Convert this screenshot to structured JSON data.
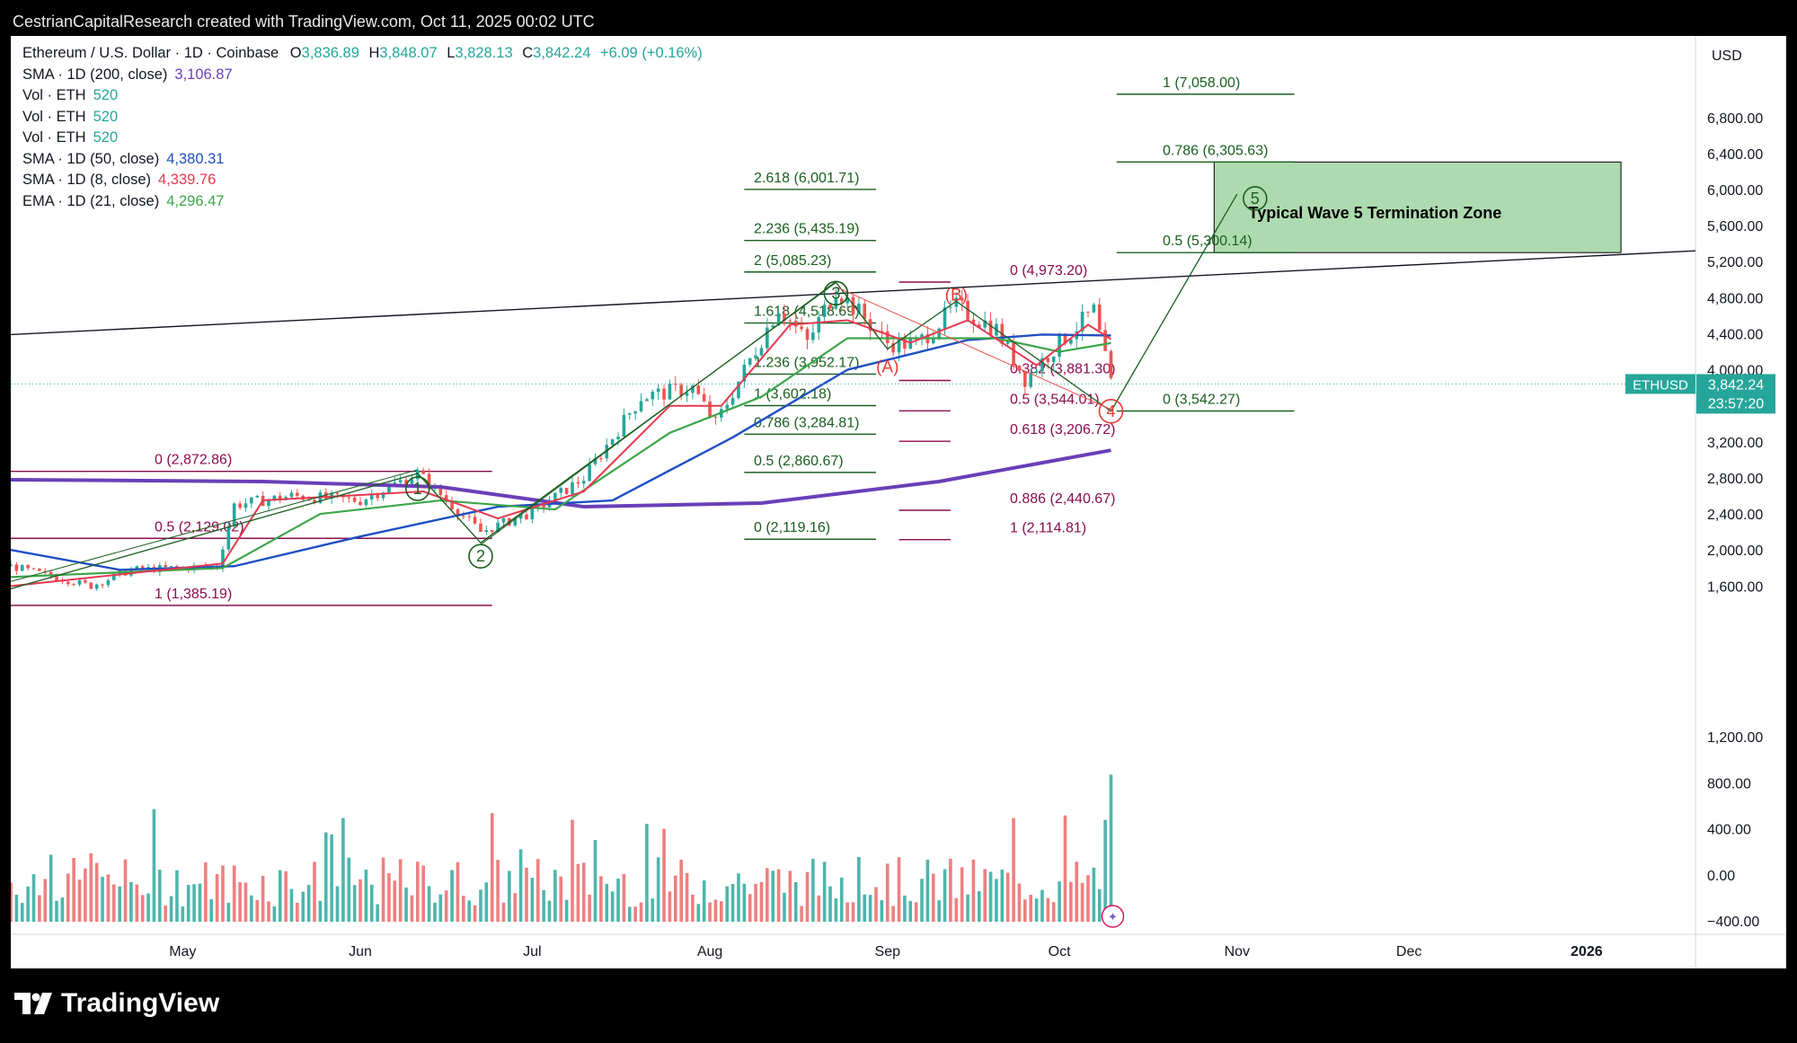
{
  "header": {
    "attribution": "CestrianCapitalResearch created with TradingView.com, Oct 11, 2025 00:02 UTC"
  },
  "legend": {
    "symbol": "Ethereum / U.S. Dollar · 1D · Coinbase",
    "o_label": "O",
    "o_value": "3,836.89",
    "h_label": "H",
    "h_value": "3,848.07",
    "l_label": "L",
    "l_value": "3,828.13",
    "c_label": "C",
    "c_value": "3,842.24",
    "change": "+6.09 (+0.16%)",
    "indicators": [
      {
        "label": "SMA · 1D (200, close)",
        "value": "3,106.87",
        "color": "#6a3fb8"
      },
      {
        "label": "Vol · ETH",
        "value": "520",
        "color": "#26a69a"
      },
      {
        "label": "Vol · ETH",
        "value": "520",
        "color": "#26a69a"
      },
      {
        "label": "Vol · ETH",
        "value": "520",
        "color": "#26a69a"
      },
      {
        "label": "SMA · 1D (50, close)",
        "value": "4,380.31",
        "color": "#1e4fc2"
      },
      {
        "label": "SMA · 1D (8, close)",
        "value": "4,339.76",
        "color": "#e53950"
      },
      {
        "label": "EMA · 1D (21, close)",
        "value": "4,296.47",
        "color": "#3ca54a"
      }
    ]
  },
  "price_axis": {
    "currency": "USD",
    "ticks": [
      "6,800.00",
      "6,400.00",
      "6,000.00",
      "5,600.00",
      "5,200.00",
      "4,800.00",
      "4,400.00",
      "4,000.00",
      "3,600.00",
      "3,200.00",
      "2,800.00",
      "2,400.00",
      "2,000.00",
      "1,600.00"
    ],
    "volume_ticks": [
      "1,200.00",
      "800.00",
      "400.00",
      "0.00",
      "−400.00"
    ],
    "symbol_tag": "ETHUSD",
    "last_price": "3,842.24",
    "countdown": "23:57:20",
    "tag_color": "#26a69a"
  },
  "time_axis": {
    "labels": [
      "May",
      "Jun",
      "Jul",
      "Aug",
      "Sep",
      "Oct",
      "Nov",
      "Dec",
      "2026"
    ]
  },
  "chart_data": {
    "type": "candlestick",
    "symbol": "ETHUSD",
    "timeframe": "1D",
    "exchange": "Coinbase",
    "price_range": [
      -400,
      7000
    ],
    "fibonacci_retracement_left": [
      {
        "label": "0 (2,872.86)",
        "value": 2872.86
      },
      {
        "label": "0.5 (2,129.02)",
        "value": 2129.02
      },
      {
        "label": "1 (1,385.19)",
        "value": 1385.19
      }
    ],
    "fibonacci_extension_wave3": [
      {
        "label": "2.618 (6,001.71)",
        "value": 6001.71
      },
      {
        "label": "2.236 (5,435.19)",
        "value": 5435.19
      },
      {
        "label": "2 (5,085.23)",
        "value": 5085.23
      },
      {
        "label": "1.618 (4,518.69)",
        "value": 4518.69
      },
      {
        "label": "1.236 (3,952.17)",
        "value": 3952.17
      },
      {
        "label": "1 (3,602.18)",
        "value": 3602.18
      },
      {
        "label": "0.786 (3,284.81)",
        "value": 3284.81
      },
      {
        "label": "0.5 (2,860.67)",
        "value": 2860.67
      },
      {
        "label": "0 (2,119.16)",
        "value": 2119.16
      }
    ],
    "fibonacci_retracement_wave4": [
      {
        "label": "0 (4,973.20)",
        "value": 4973.2
      },
      {
        "label": "0.382 (3,881.30)",
        "value": 3881.3
      },
      {
        "label": "0.5 (3,544.01)",
        "value": 3544.01
      },
      {
        "label": "0.618 (3,206.72)",
        "value": 3206.72
      },
      {
        "label": "0.886 (2,440.67)",
        "value": 2440.67
      },
      {
        "label": "1 (2,114.81)",
        "value": 2114.81
      }
    ],
    "fibonacci_extension_wave5": [
      {
        "label": "1 (7,058.00)",
        "value": 7058.0
      },
      {
        "label": "0.786 (6,305.63)",
        "value": 6305.63
      },
      {
        "label": "0.5 (5,300.14)",
        "value": 5300.14
      },
      {
        "label": "0 (3,542.27)",
        "value": 3542.27
      }
    ],
    "wave_labels": [
      {
        "label": "1",
        "date": "2025-06-11",
        "price": 2880
      },
      {
        "label": "2",
        "date": "2025-06-22",
        "price": 2110
      },
      {
        "label": "3",
        "date": "2025-08-23",
        "price": 4950
      },
      {
        "label": "4",
        "date": "2025-10-10",
        "price": 3440
      },
      {
        "label": "5",
        "date": "2025-11-01",
        "price": 6100
      },
      {
        "label": "(A)",
        "date": "2025-09-01",
        "price": 4050
      },
      {
        "label": "(B)",
        "date": "2025-09-13",
        "price": 4770
      }
    ],
    "termination_zone": {
      "label": "Typical Wave 5 Termination Zone",
      "price_low": 5300.14,
      "price_high": 6305.63,
      "color": "#a5d6a7"
    },
    "trendline": {
      "from": {
        "date": "2025-04-01",
        "price": 4390
      },
      "to": {
        "date": "2026-01-20",
        "price": 5320
      }
    },
    "price_path": [
      {
        "date": "2025-04-01",
        "price": 1820
      },
      {
        "date": "2025-04-15",
        "price": 1600
      },
      {
        "date": "2025-04-22",
        "price": 1780
      },
      {
        "date": "2025-05-07",
        "price": 1820
      },
      {
        "date": "2025-05-10",
        "price": 2500
      },
      {
        "date": "2025-05-20",
        "price": 2600
      },
      {
        "date": "2025-06-01",
        "price": 2550
      },
      {
        "date": "2025-06-11",
        "price": 2850
      },
      {
        "date": "2025-06-22",
        "price": 2200
      },
      {
        "date": "2025-07-01",
        "price": 2420
      },
      {
        "date": "2025-07-10",
        "price": 2800
      },
      {
        "date": "2025-07-20",
        "price": 3700
      },
      {
        "date": "2025-07-29",
        "price": 3800
      },
      {
        "date": "2025-08-02",
        "price": 3400
      },
      {
        "date": "2025-08-13",
        "price": 4700
      },
      {
        "date": "2025-08-18",
        "price": 4300
      },
      {
        "date": "2025-08-23",
        "price": 4900
      },
      {
        "date": "2025-09-01",
        "price": 4300
      },
      {
        "date": "2025-09-06",
        "price": 4280
      },
      {
        "date": "2025-09-13",
        "price": 4700
      },
      {
        "date": "2025-09-20",
        "price": 4450
      },
      {
        "date": "2025-09-25",
        "price": 3900
      },
      {
        "date": "2025-10-01",
        "price": 4300
      },
      {
        "date": "2025-10-07",
        "price": 4650
      },
      {
        "date": "2025-10-10",
        "price": 3842
      }
    ],
    "sma200": [
      {
        "date": "2025-04-01",
        "price": 2780
      },
      {
        "date": "2025-05-15",
        "price": 2760
      },
      {
        "date": "2025-06-15",
        "price": 2700
      },
      {
        "date": "2025-07-10",
        "price": 2480
      },
      {
        "date": "2025-08-10",
        "price": 2520
      },
      {
        "date": "2025-09-10",
        "price": 2760
      },
      {
        "date": "2025-10-10",
        "price": 3106.87
      }
    ],
    "sma50": [
      {
        "date": "2025-04-01",
        "price": 2000
      },
      {
        "date": "2025-04-20",
        "price": 1780
      },
      {
        "date": "2025-05-10",
        "price": 1820
      },
      {
        "date": "2025-06-01",
        "price": 2150
      },
      {
        "date": "2025-06-25",
        "price": 2480
      },
      {
        "date": "2025-07-15",
        "price": 2550
      },
      {
        "date": "2025-08-05",
        "price": 3250
      },
      {
        "date": "2025-08-25",
        "price": 4000
      },
      {
        "date": "2025-09-15",
        "price": 4330
      },
      {
        "date": "2025-09-28",
        "price": 4390
      },
      {
        "date": "2025-10-10",
        "price": 4380.31
      }
    ],
    "ema21": [
      {
        "date": "2025-04-01",
        "price": 1700
      },
      {
        "date": "2025-05-08",
        "price": 1800
      },
      {
        "date": "2025-05-25",
        "price": 2400
      },
      {
        "date": "2025-06-15",
        "price": 2550
      },
      {
        "date": "2025-07-05",
        "price": 2450
      },
      {
        "date": "2025-07-25",
        "price": 3300
      },
      {
        "date": "2025-08-10",
        "price": 3700
      },
      {
        "date": "2025-08-25",
        "price": 4350
      },
      {
        "date": "2025-09-20",
        "price": 4350
      },
      {
        "date": "2025-10-01",
        "price": 4200
      },
      {
        "date": "2025-10-10",
        "price": 4296.47
      }
    ],
    "sma8": [
      {
        "date": "2025-04-01",
        "price": 1600
      },
      {
        "date": "2025-05-08",
        "price": 1850
      },
      {
        "date": "2025-05-15",
        "price": 2550
      },
      {
        "date": "2025-06-12",
        "price": 2650
      },
      {
        "date": "2025-06-25",
        "price": 2350
      },
      {
        "date": "2025-07-10",
        "price": 2650
      },
      {
        "date": "2025-07-25",
        "price": 3600
      },
      {
        "date": "2025-08-03",
        "price": 3600
      },
      {
        "date": "2025-08-15",
        "price": 4500
      },
      {
        "date": "2025-08-25",
        "price": 4550
      },
      {
        "date": "2025-09-05",
        "price": 4300
      },
      {
        "date": "2025-09-15",
        "price": 4550
      },
      {
        "date": "2025-09-27",
        "price": 4050
      },
      {
        "date": "2025-10-06",
        "price": 4500
      },
      {
        "date": "2025-10-10",
        "price": 4339.76
      }
    ],
    "last_price": 3842.24
  }
}
